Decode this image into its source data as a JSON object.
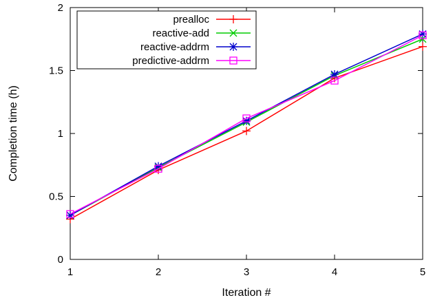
{
  "chart_data": {
    "type": "line",
    "title": "",
    "xlabel": "Iteration #",
    "ylabel": "Completion time (h)",
    "x": [
      1,
      2,
      3,
      4,
      5
    ],
    "xlim": [
      1,
      5
    ],
    "ylim": [
      0,
      2
    ],
    "xticks": [
      "1",
      "2",
      "3",
      "4",
      "5"
    ],
    "yticks": [
      "0",
      "0.5",
      "1",
      "1.5",
      "2"
    ],
    "grid": false,
    "legend_position": "top-left",
    "series": [
      {
        "name": "prealloc",
        "values": [
          0.32,
          0.71,
          1.02,
          1.44,
          1.69
        ],
        "color": "#ff0000",
        "marker": "plus"
      },
      {
        "name": "reactive-add",
        "values": [
          0.35,
          0.73,
          1.09,
          1.46,
          1.75
        ],
        "color": "#00cc00",
        "marker": "cross"
      },
      {
        "name": "reactive-addrm",
        "values": [
          0.35,
          0.74,
          1.1,
          1.47,
          1.79
        ],
        "color": "#0000cc",
        "marker": "star"
      },
      {
        "name": "predictive-addrm",
        "values": [
          0.36,
          0.72,
          1.12,
          1.42,
          1.78
        ],
        "color": "#ff00ff",
        "marker": "square"
      }
    ]
  }
}
